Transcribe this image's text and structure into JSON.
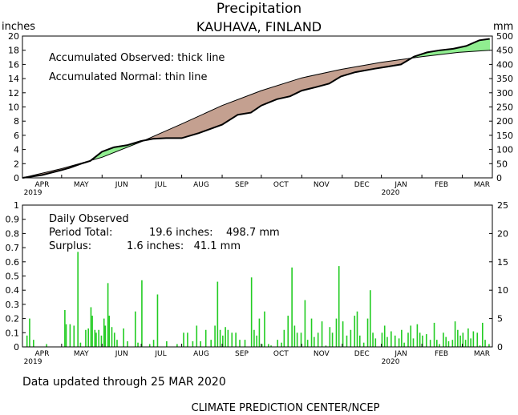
{
  "chart_data": [
    {
      "type": "area",
      "title": "Precipitation",
      "subtitle": "KAUHAVA, FINLAND",
      "ylabel_left": "inches",
      "ylabel_right": "mm",
      "ylim": [
        0,
        20
      ],
      "ylim_right": [
        0,
        500
      ],
      "yticks_left": [
        "0",
        "2",
        "4",
        "6",
        "8",
        "10",
        "12",
        "14",
        "16",
        "18",
        "20"
      ],
      "yticks_right": [
        "0",
        "50",
        "100",
        "150",
        "200",
        "250",
        "300",
        "350",
        "400",
        "450",
        "500"
      ],
      "x_months": [
        "APR",
        "MAY",
        "JUN",
        "JUL",
        "AUG",
        "SEP",
        "OCT",
        "NOV",
        "DEC",
        "JAN",
        "FEB",
        "MAR"
      ],
      "x_years": [
        "2019",
        "2020"
      ],
      "annotations": [
        "Accumulated Observed: thick line",
        "Accumulated Normal: thin line"
      ],
      "fill_colors": {
        "surplus": "#90ee90",
        "deficit": "#c4a090"
      },
      "series": [
        {
          "name": "Accumulated Normal",
          "x": [
            0,
            30,
            61,
            91,
            122,
            153,
            183,
            214,
            244,
            275,
            306,
            334,
            358
          ],
          "values": [
            0,
            1.3,
            2.9,
            5.1,
            7.6,
            10.2,
            12.3,
            14.1,
            15.3,
            16.3,
            17.1,
            17.7,
            18.0
          ]
        },
        {
          "name": "Accumulated Observed",
          "x": [
            0,
            15,
            30,
            36,
            45,
            52,
            61,
            70,
            80,
            91,
            100,
            110,
            122,
            135,
            153,
            165,
            175,
            183,
            195,
            205,
            214,
            225,
            235,
            244,
            255,
            270,
            280,
            290,
            300,
            310,
            320,
            330,
            340,
            350,
            358
          ],
          "values": [
            0,
            0.4,
            1.1,
            1.4,
            2.0,
            2.4,
            3.7,
            4.3,
            4.6,
            5.2,
            5.5,
            5.6,
            5.6,
            6.3,
            7.5,
            8.9,
            9.2,
            10.2,
            11.1,
            11.5,
            12.3,
            12.8,
            13.3,
            14.3,
            14.9,
            15.4,
            15.7,
            16.0,
            17.1,
            17.7,
            18.0,
            18.2,
            18.6,
            19.4,
            19.6
          ]
        }
      ]
    },
    {
      "type": "bar",
      "title": "Daily Observed",
      "ylim": [
        0,
        1
      ],
      "ylim_right": [
        0,
        25
      ],
      "yticks_left": [
        "0",
        "0.1",
        "0.2",
        "0.3",
        "0.4",
        "0.5",
        "0.6",
        "0.7",
        "0.8",
        "0.9",
        "1"
      ],
      "yticks_right": [
        "0",
        "5",
        "10",
        "15",
        "20",
        "25"
      ],
      "x_months": [
        "APR",
        "MAY",
        "JUN",
        "JUL",
        "AUG",
        "SEP",
        "OCT",
        "NOV",
        "DEC",
        "JAN",
        "FEB",
        "MAR"
      ],
      "x_years": [
        "2019",
        "2020"
      ],
      "bar_color": "#22cc22",
      "bars": [
        [
          3,
          0.08
        ],
        [
          5,
          0.2
        ],
        [
          8,
          0.05
        ],
        [
          18,
          0.02
        ],
        [
          32,
          0.26
        ],
        [
          33,
          0.16
        ],
        [
          36,
          0.16
        ],
        [
          39,
          0.15
        ],
        [
          42,
          0.67
        ],
        [
          44,
          0.03
        ],
        [
          48,
          0.12
        ],
        [
          50,
          0.13
        ],
        [
          52,
          0.28
        ],
        [
          53,
          0.22
        ],
        [
          55,
          0.12
        ],
        [
          56,
          0.1
        ],
        [
          58,
          0.12
        ],
        [
          60,
          0.08
        ],
        [
          62,
          0.2
        ],
        [
          63,
          0.15
        ],
        [
          65,
          0.45
        ],
        [
          66,
          0.22
        ],
        [
          68,
          0.14
        ],
        [
          70,
          0.1
        ],
        [
          72,
          0.05
        ],
        [
          77,
          0.13
        ],
        [
          80,
          0.04
        ],
        [
          86,
          0.25
        ],
        [
          88,
          0.03
        ],
        [
          91,
          0.47
        ],
        [
          97,
          0.02
        ],
        [
          100,
          0.05
        ],
        [
          103,
          0.37
        ],
        [
          110,
          0.04
        ],
        [
          118,
          0.02
        ],
        [
          123,
          0.1
        ],
        [
          126,
          0.1
        ],
        [
          130,
          0.04
        ],
        [
          133,
          0.15
        ],
        [
          136,
          0.04
        ],
        [
          140,
          0.12
        ],
        [
          144,
          0.05
        ],
        [
          147,
          0.15
        ],
        [
          149,
          0.46
        ],
        [
          151,
          0.12
        ],
        [
          153,
          0.08
        ],
        [
          155,
          0.14
        ],
        [
          157,
          0.12
        ],
        [
          160,
          0.1
        ],
        [
          163,
          0.1
        ],
        [
          166,
          0.05
        ],
        [
          170,
          0.05
        ],
        [
          175,
          0.49
        ],
        [
          177,
          0.12
        ],
        [
          179,
          0.08
        ],
        [
          181,
          0.2
        ],
        [
          183,
          0.02
        ],
        [
          185,
          0.25
        ],
        [
          188,
          0.02
        ],
        [
          190,
          0.01
        ],
        [
          195,
          0.05
        ],
        [
          198,
          0.03
        ],
        [
          200,
          0.12
        ],
        [
          203,
          0.22
        ],
        [
          206,
          0.56
        ],
        [
          208,
          0.15
        ],
        [
          210,
          0.1
        ],
        [
          213,
          0.1
        ],
        [
          216,
          0.33
        ],
        [
          218,
          0.05
        ],
        [
          221,
          0.2
        ],
        [
          223,
          0.07
        ],
        [
          226,
          0.1
        ],
        [
          229,
          0.18
        ],
        [
          232,
          0.01
        ],
        [
          235,
          0.14
        ],
        [
          237,
          0.1
        ],
        [
          240,
          0.2
        ],
        [
          242,
          0.57
        ],
        [
          245,
          0.18
        ],
        [
          248,
          0.08
        ],
        [
          251,
          0.12
        ],
        [
          254,
          0.22
        ],
        [
          256,
          0.25
        ],
        [
          258,
          0.08
        ],
        [
          261,
          0.03
        ],
        [
          264,
          0.2
        ],
        [
          266,
          0.4
        ],
        [
          268,
          0.1
        ],
        [
          270,
          0.06
        ],
        [
          275,
          0.1
        ],
        [
          277,
          0.15
        ],
        [
          279,
          0.07
        ],
        [
          282,
          0.11
        ],
        [
          285,
          0.08
        ],
        [
          288,
          0.06
        ],
        [
          290,
          0.12
        ],
        [
          292,
          0.03
        ],
        [
          295,
          0.1
        ],
        [
          297,
          0.15
        ],
        [
          299,
          0.06
        ],
        [
          302,
          0.16
        ],
        [
          304,
          0.1
        ],
        [
          306,
          0.08
        ],
        [
          309,
          0.09
        ],
        [
          312,
          0.05
        ],
        [
          315,
          0.17
        ],
        [
          317,
          0.05
        ],
        [
          319,
          0.02
        ],
        [
          322,
          0.1
        ],
        [
          324,
          0.07
        ],
        [
          326,
          0.04
        ],
        [
          329,
          0.05
        ],
        [
          331,
          0.18
        ],
        [
          333,
          0.12
        ],
        [
          335,
          0.08
        ],
        [
          337,
          0.1
        ],
        [
          339,
          0.05
        ],
        [
          341,
          0.13
        ],
        [
          343,
          0.06
        ],
        [
          345,
          0.11
        ],
        [
          348,
          0.1
        ],
        [
          350,
          0.01
        ],
        [
          352,
          0.17
        ],
        [
          354,
          0.05
        ],
        [
          357,
          0.02
        ]
      ],
      "text_lines": [
        {
          "label": "Daily Observed",
          "value": ""
        },
        {
          "label": "Period Total:",
          "value": "19.6 inches:    498.7 mm"
        },
        {
          "label": "Surplus:",
          "value": "1.6 inches:   41.1 mm"
        }
      ]
    }
  ],
  "footer": {
    "updated": "Data updated through 25 MAR 2020",
    "source": "CLIMATE PREDICTION CENTER/NCEP"
  }
}
